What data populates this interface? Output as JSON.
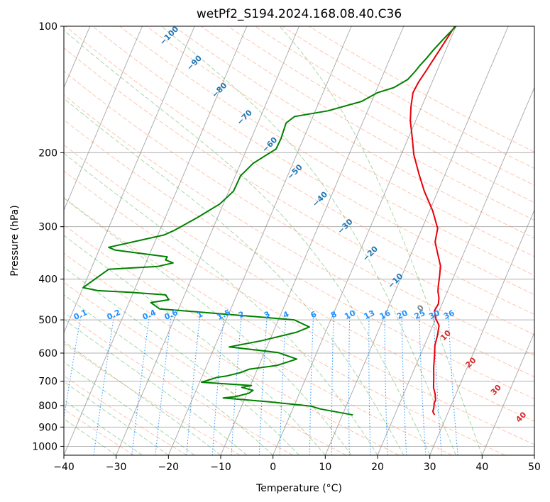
{
  "chart_data": {
    "type": "line",
    "title": "wetPf2_S194.2024.168.08.40.C36",
    "xlabel": "Temperature (°C)",
    "ylabel": "Pressure (hPa)",
    "xlim": [
      -40,
      50
    ],
    "ylim": [
      1050,
      100
    ],
    "y_scale": "log",
    "grid": true,
    "x_ticks": [
      "−40",
      "−30",
      "−20",
      "−10",
      "0",
      "10",
      "20",
      "30",
      "40",
      "50"
    ],
    "y_ticks": [
      {
        "p": 100,
        "label": "100"
      },
      {
        "p": 200,
        "label": "200"
      },
      {
        "p": 300,
        "label": "300"
      },
      {
        "p": 400,
        "label": "400"
      },
      {
        "p": 500,
        "label": "500"
      },
      {
        "p": 600,
        "label": "600"
      },
      {
        "p": 700,
        "label": "700"
      },
      {
        "p": 800,
        "label": "800"
      },
      {
        "p": 900,
        "label": "900"
      },
      {
        "p": 1000,
        "label": "1000"
      }
    ],
    "series": [
      {
        "color": "#e8000b",
        "points": [
          [
            27.6,
            842
          ],
          [
            27.0,
            826
          ],
          [
            26.9,
            810
          ],
          [
            26.6,
            790
          ],
          [
            26.6,
            776
          ],
          [
            26.0,
            750
          ],
          [
            25.2,
            725
          ],
          [
            24.5,
            690
          ],
          [
            23.6,
            650
          ],
          [
            22.8,
            610
          ],
          [
            22.0,
            575
          ],
          [
            21.7,
            545
          ],
          [
            21.2,
            516
          ],
          [
            19.9,
            495
          ],
          [
            19.1,
            476
          ],
          [
            19.3,
            458
          ],
          [
            18.9,
            443
          ],
          [
            18.2,
            428
          ],
          [
            17.8,
            415
          ],
          [
            17.3,
            395
          ],
          [
            16.6,
            372
          ],
          [
            15.2,
            350
          ],
          [
            13.6,
            326
          ],
          [
            13.0,
            303
          ],
          [
            10.6,
            275
          ],
          [
            7.4,
            247
          ],
          [
            5.0,
            225
          ],
          [
            2.4,
            202
          ],
          [
            0.6,
            183
          ],
          [
            -1.0,
            168
          ],
          [
            -2.0,
            156
          ],
          [
            -2.8,
            144
          ],
          [
            -2.6,
            136
          ],
          [
            -2.1,
            128
          ],
          [
            -1.6,
            120
          ],
          [
            -1.0,
            111
          ],
          [
            -0.2,
            100
          ]
        ]
      },
      {
        "color": "#008000",
        "points": [
          [
            12.0,
            842
          ],
          [
            5.3,
            815
          ],
          [
            3.2,
            802
          ],
          [
            -5.0,
            784
          ],
          [
            -14.2,
            767
          ],
          [
            -12.0,
            762
          ],
          [
            -9.7,
            748
          ],
          [
            -9.1,
            736
          ],
          [
            -11.5,
            724
          ],
          [
            -9.8,
            717
          ],
          [
            -19.6,
            704
          ],
          [
            -17.0,
            685
          ],
          [
            -15.3,
            680
          ],
          [
            -13.0,
            668
          ],
          [
            -11.5,
            655
          ],
          [
            -6.6,
            642
          ],
          [
            -3.3,
            620
          ],
          [
            -7.4,
            598
          ],
          [
            -17.2,
            580
          ],
          [
            -11.4,
            560
          ],
          [
            -8.6,
            548
          ],
          [
            -5.5,
            535
          ],
          [
            -3.5,
            520
          ],
          [
            -7.0,
            500
          ],
          [
            -26.8,
            478
          ],
          [
            -33.6,
            471
          ],
          [
            -35.8,
            455
          ],
          [
            -32.6,
            448
          ],
          [
            -33.6,
            436
          ],
          [
            -40.6,
            430
          ],
          [
            -47.0,
            426
          ],
          [
            -50.0,
            419
          ],
          [
            -46.6,
            379
          ],
          [
            -37.4,
            373
          ],
          [
            -34.8,
            366
          ],
          [
            -36.5,
            360
          ],
          [
            -36.4,
            354
          ],
          [
            -47.0,
            341
          ],
          [
            -48.4,
            336
          ],
          [
            -38.8,
            314
          ],
          [
            -37.2,
            306
          ],
          [
            -33.8,
            285
          ],
          [
            -30.7,
            265
          ],
          [
            -29.1,
            247
          ],
          [
            -29.0,
            227
          ],
          [
            -27.6,
            212
          ],
          [
            -24.4,
            196
          ],
          [
            -24.3,
            185
          ],
          [
            -24.6,
            170
          ],
          [
            -23.5,
            164
          ],
          [
            -17.6,
            159
          ],
          [
            -11.9,
            151
          ],
          [
            -9.6,
            144
          ],
          [
            -6.9,
            140
          ],
          [
            -4.9,
            134
          ],
          [
            -4.1,
            128
          ],
          [
            -3.7,
            124
          ],
          [
            -3.0,
            119
          ],
          [
            -2.4,
            114
          ],
          [
            -1.3,
            107
          ],
          [
            0.0,
            100
          ]
        ]
      }
    ],
    "dry_adiabat_labels": [
      "−100",
      "−90",
      "−80",
      "−70",
      "−60",
      "−50",
      "−40",
      "−30",
      "−20",
      "−10",
      "0",
      "10",
      "20",
      "30",
      "40"
    ],
    "mixing_ratio_labels": [
      "0.1",
      "0.2",
      "0.4",
      "0.6",
      "1",
      "1.5",
      "2",
      "3",
      "4",
      "6",
      "8",
      "10",
      "13",
      "16",
      "20",
      "25",
      "30",
      "36"
    ],
    "colors": {
      "temperature": "#e8000b",
      "dewpoint": "#008000",
      "dry_adiabat": "#ff7f50",
      "moist_adiabat": "#2ca02c",
      "mixing_ratio": "#1e90ff",
      "isotherm": "#808080",
      "isobar": "#b0b0b0",
      "cold_adiabat_label": "#1f77b4",
      "warm_adiabat_label": "#d62728",
      "zero_adiabat_label": "#808080"
    }
  }
}
